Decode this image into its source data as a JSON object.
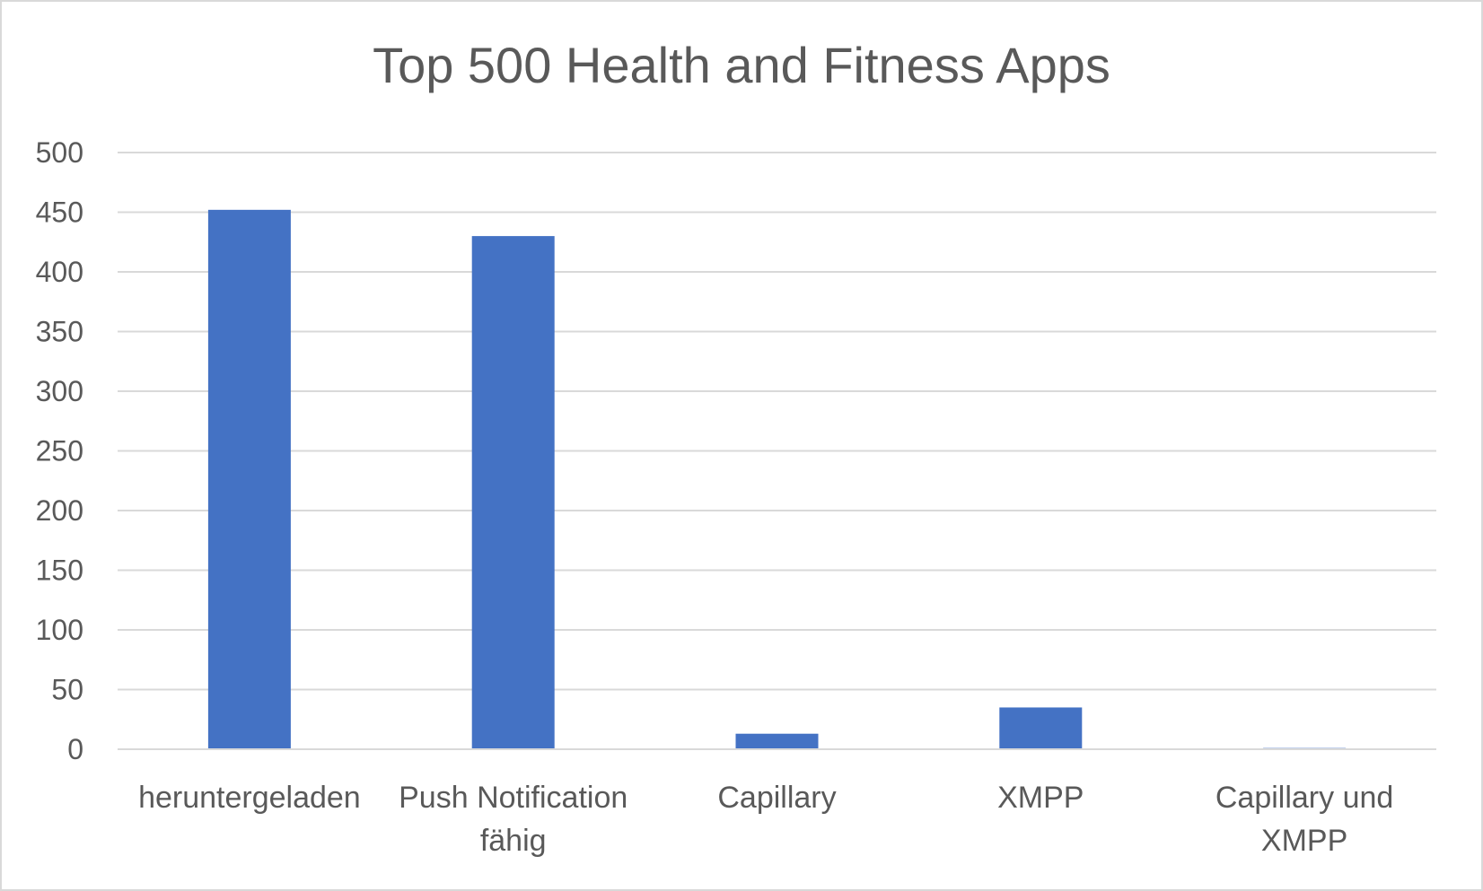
{
  "chart_data": {
    "type": "bar",
    "title": "Top 500 Health and Fitness Apps",
    "categories": [
      [
        "herunterge­laden"
      ],
      [
        "Push Notification",
        "fähig"
      ],
      [
        "Capillary"
      ],
      [
        "XMPP"
      ],
      [
        "Capillary und",
        "XMPP"
      ]
    ],
    "category_text": [
      "heruntergeladen",
      "Push Notification fähig",
      "Capillary",
      "XMPP",
      "Capillary und XMPP"
    ],
    "values": [
      452,
      430,
      13,
      35,
      1
    ],
    "ylim": [
      0,
      500
    ],
    "yticks": [
      "0",
      "50",
      "100",
      "150",
      "200",
      "250",
      "300",
      "350",
      "400",
      "450",
      "500"
    ],
    "grid": true,
    "legend": "none",
    "bar_color": "#4472c4",
    "grid_color": "#d9d9d9",
    "text_color": "#595959"
  }
}
